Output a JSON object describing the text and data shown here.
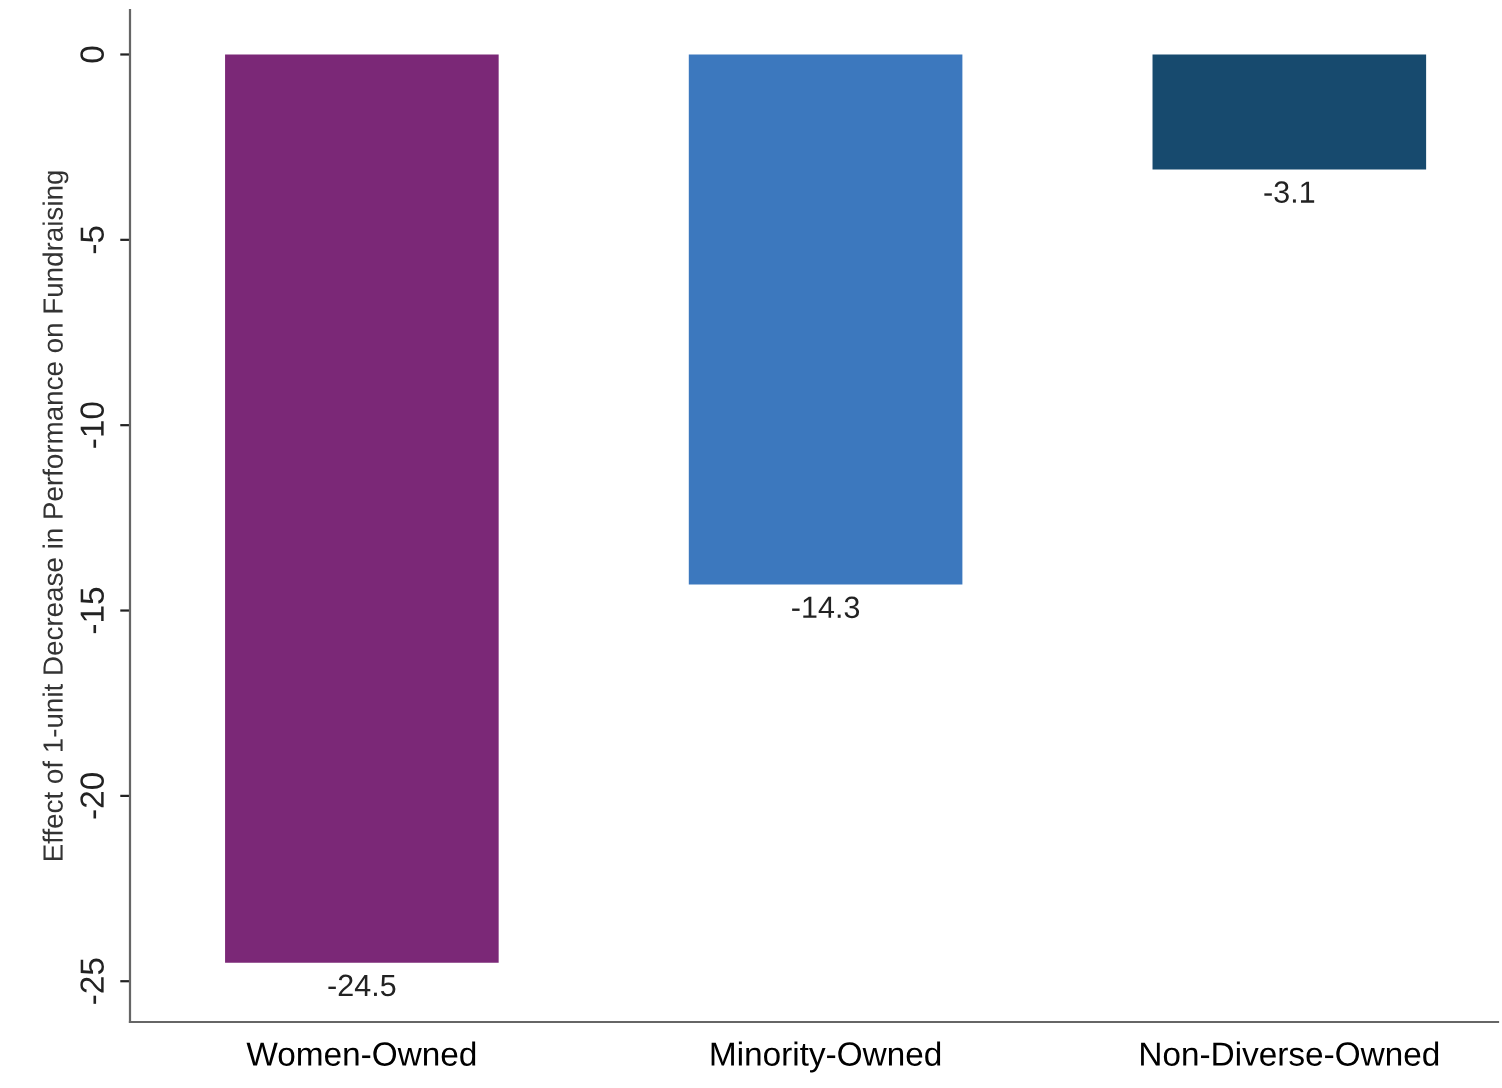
{
  "chart_data": {
    "type": "bar",
    "ylabel": "Effect of 1-unit Decrease in Performance on Fundraising",
    "categories": [
      "Women-Owned",
      "Minority-Owned",
      "Non-Diverse-Owned"
    ],
    "values": [
      -24.5,
      -14.3,
      -3.1
    ],
    "colors": [
      "#7b2877",
      "#3c78be",
      "#174a6e"
    ],
    "ylim": [
      -26.1,
      1.2
    ],
    "yticks": [
      0,
      -5,
      -10,
      -15,
      -20,
      -25
    ],
    "data_labels": true,
    "grid": false,
    "legend": false
  }
}
